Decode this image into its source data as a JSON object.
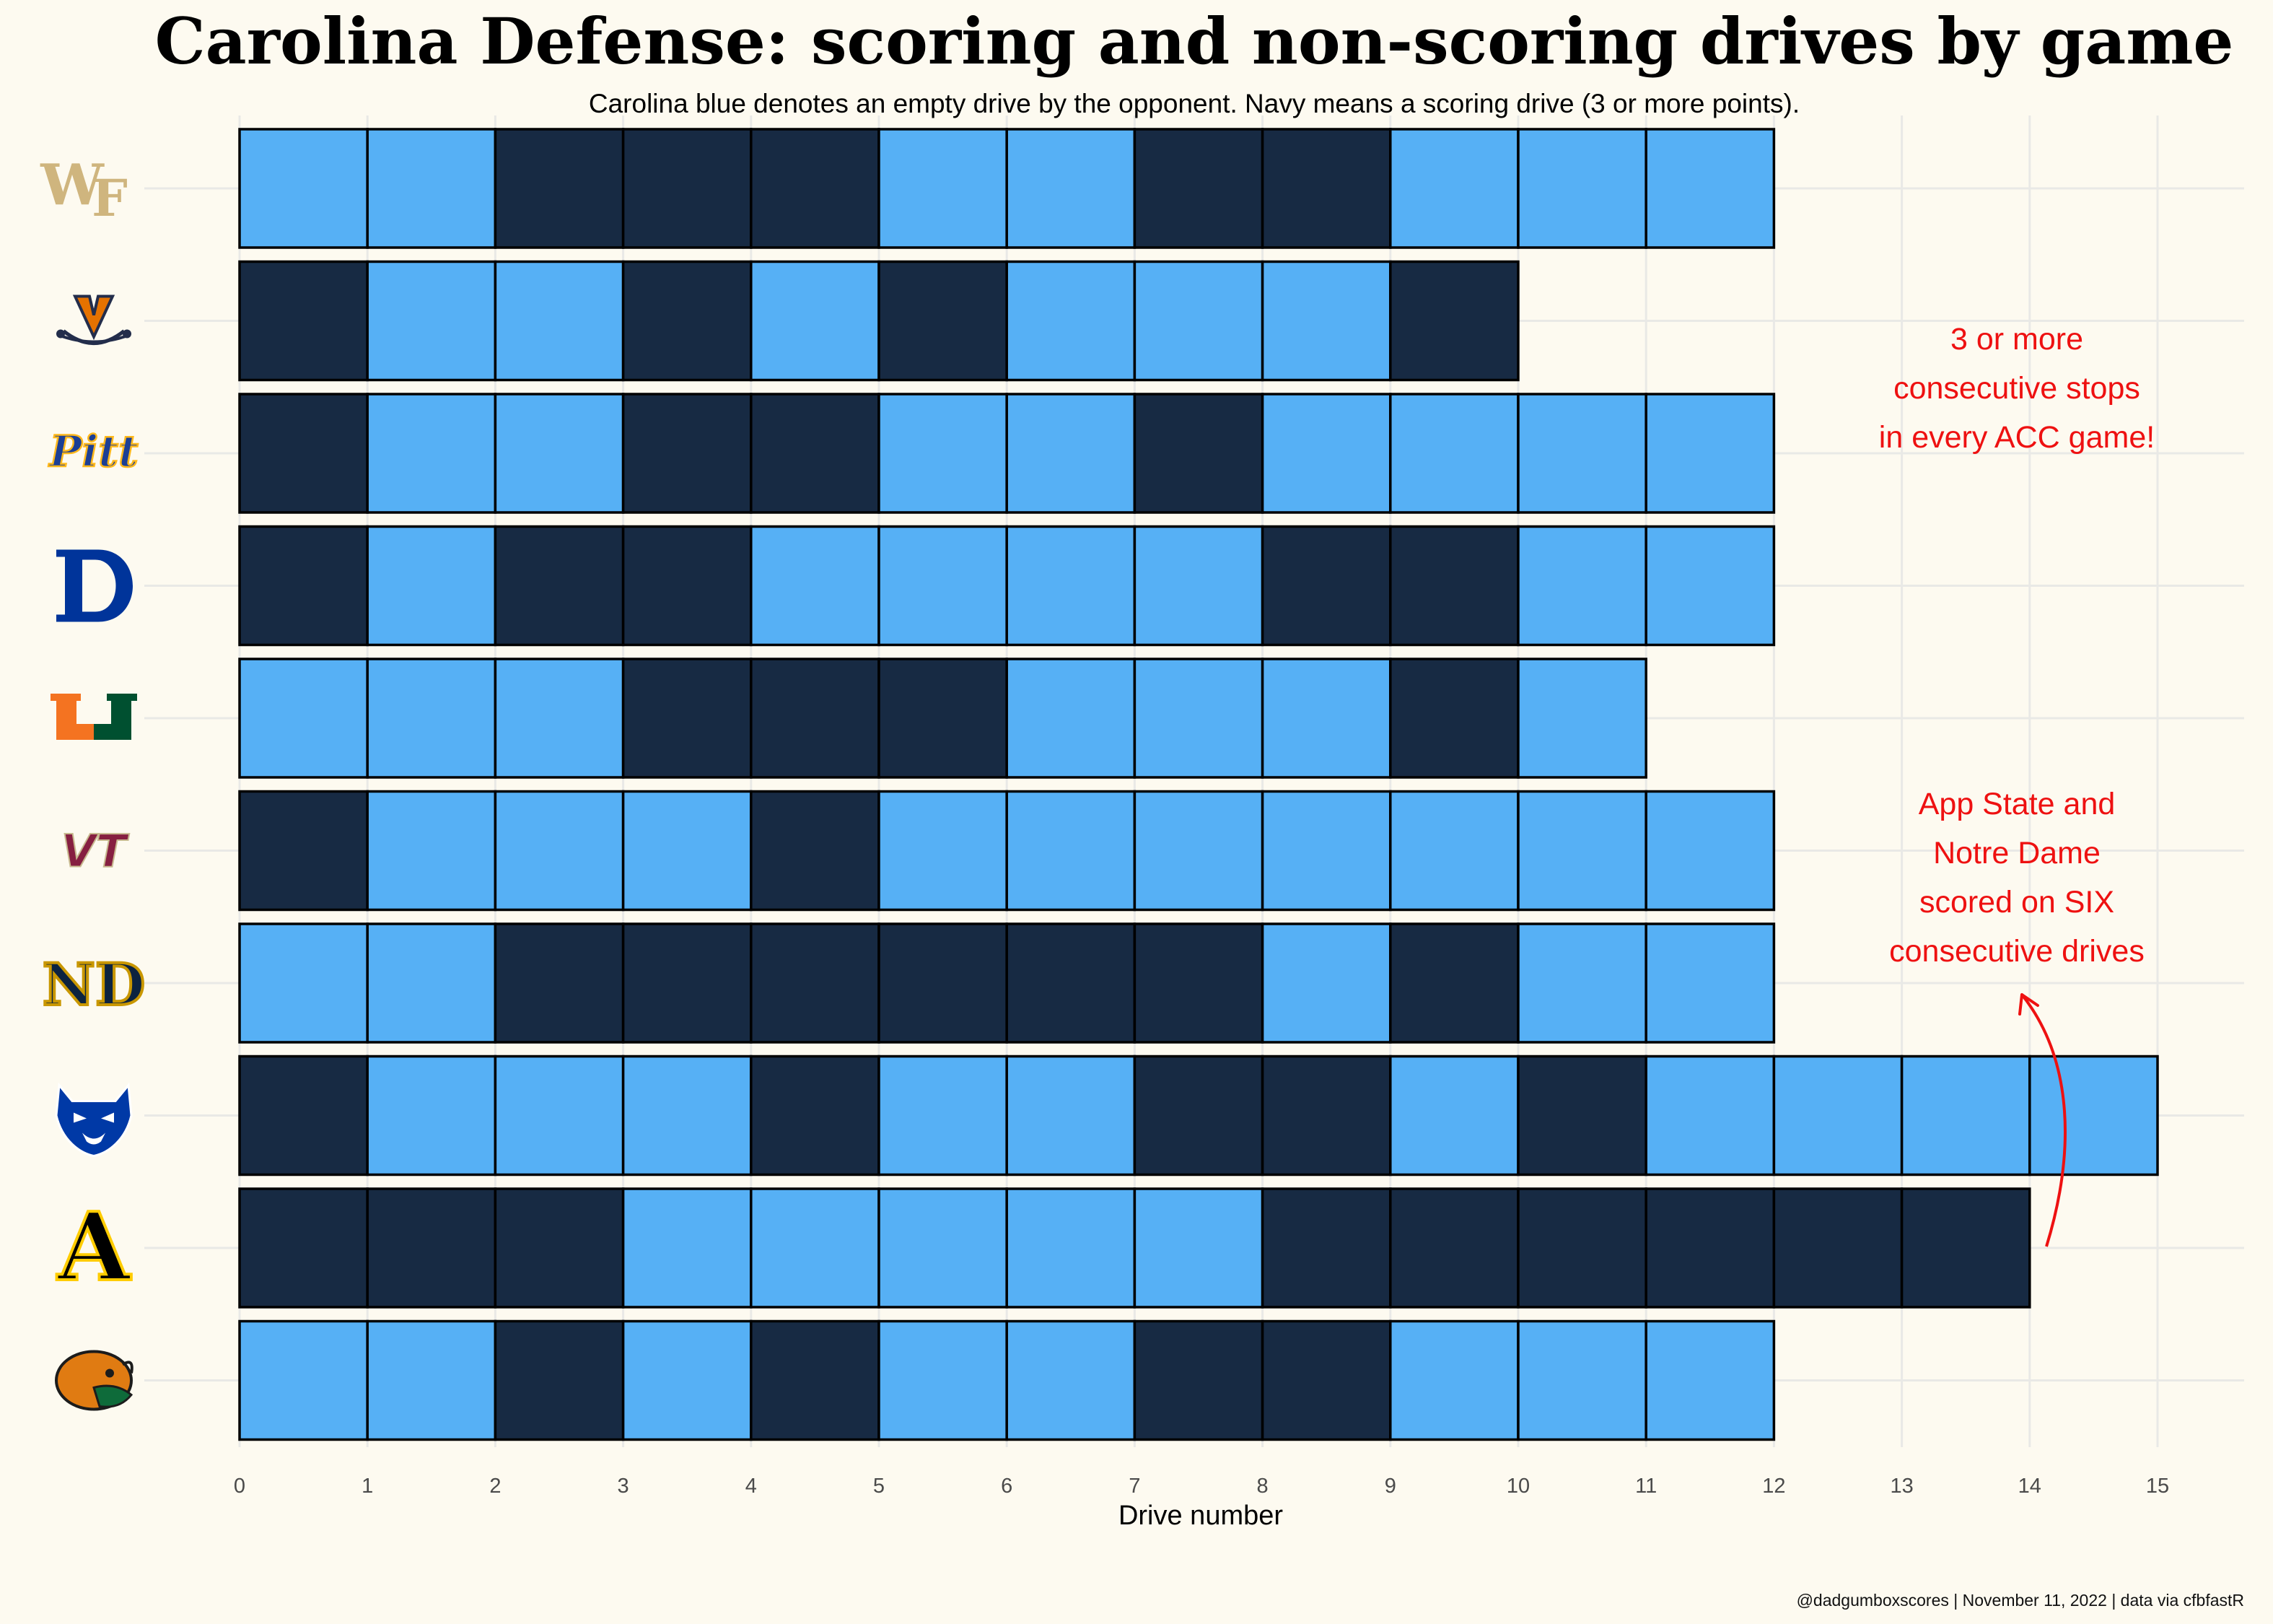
{
  "chart_data": {
    "type": "bar",
    "title": "Carolina Defense: scoring and non-scoring drives by game",
    "subtitle": "Carolina blue denotes an empty drive by the opponent. Navy means a scoring drive (3 or more points).",
    "xlabel": "Drive number",
    "xlim": [
      0,
      15
    ],
    "x_ticks": [
      "0",
      "1",
      "2",
      "3",
      "4",
      "5",
      "6",
      "7",
      "8",
      "9",
      "10",
      "11",
      "12",
      "13",
      "14",
      "15"
    ],
    "grid": true,
    "colors": {
      "empty": "#56b0f5",
      "score": "#172a43",
      "annotation": "#ee1111"
    },
    "encoding": {
      "0": "empty drive",
      "1": "scoring drive"
    },
    "games": [
      {
        "logo": "WF",
        "drives": [
          0,
          0,
          1,
          1,
          1,
          0,
          0,
          1,
          1,
          0,
          0,
          0
        ]
      },
      {
        "logo": "V",
        "drives": [
          1,
          0,
          0,
          1,
          0,
          1,
          0,
          0,
          0,
          1
        ]
      },
      {
        "logo": "Pitt",
        "drives": [
          1,
          0,
          0,
          1,
          1,
          0,
          0,
          1,
          0,
          0,
          0,
          0
        ]
      },
      {
        "logo": "D",
        "drives": [
          1,
          0,
          1,
          1,
          0,
          0,
          0,
          0,
          1,
          1,
          0,
          0
        ]
      },
      {
        "logo": "U",
        "drives": [
          0,
          0,
          0,
          1,
          1,
          1,
          0,
          0,
          0,
          1,
          0
        ]
      },
      {
        "logo": "VT",
        "drives": [
          1,
          0,
          0,
          0,
          1,
          0,
          0,
          0,
          0,
          0,
          0,
          0
        ]
      },
      {
        "logo": "ND",
        "drives": [
          0,
          0,
          1,
          1,
          1,
          1,
          1,
          1,
          0,
          1,
          0,
          0
        ]
      },
      {
        "logo": "panther",
        "drives": [
          1,
          0,
          0,
          0,
          1,
          0,
          0,
          1,
          1,
          0,
          1,
          0,
          0,
          0,
          0
        ]
      },
      {
        "logo": "A",
        "drives": [
          1,
          1,
          1,
          0,
          0,
          0,
          0,
          0,
          1,
          1,
          1,
          1,
          1,
          1
        ]
      },
      {
        "logo": "rattler",
        "drives": [
          0,
          0,
          1,
          0,
          1,
          0,
          0,
          1,
          1,
          0,
          0,
          0
        ]
      }
    ],
    "annotations": [
      {
        "lines": [
          "3 or more",
          "consecutive stops",
          "in every ACC game!"
        ]
      },
      {
        "lines": [
          "App State and",
          "Notre Dame",
          "scored on SIX",
          "consecutive drives"
        ]
      }
    ],
    "caption": "@dadgumboxscores | November 11, 2022 | data via cfbfastR"
  }
}
